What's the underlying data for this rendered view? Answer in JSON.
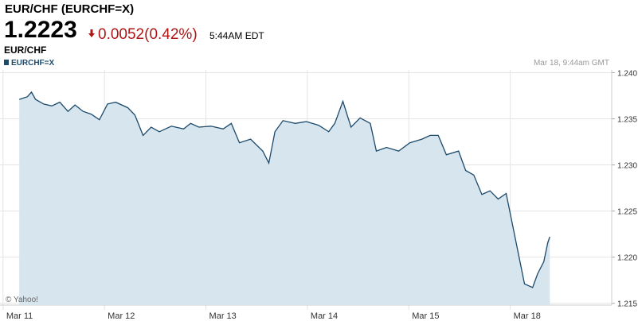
{
  "header": {
    "title": "EUR/CHF (EURCHF=X)",
    "price": "1.2223",
    "change": "0.0052(0.42%)",
    "time": "5:44AM EDT"
  },
  "chart_data": {
    "type": "area",
    "title": "EUR/CHF",
    "timestamp": "Mar 18, 9:44am GMT",
    "credit": "© Yahoo!",
    "x": [
      0.16,
      0.24,
      0.28,
      0.32,
      0.4,
      0.48,
      0.56,
      0.64,
      0.71,
      0.79,
      0.87,
      0.95,
      1.03,
      1.11,
      1.23,
      1.3,
      1.38,
      1.46,
      1.54,
      1.66,
      1.78,
      1.85,
      1.93,
      2.05,
      2.17,
      2.25,
      2.33,
      2.44,
      2.56,
      2.62,
      2.68,
      2.76,
      2.88,
      2.99,
      3.11,
      3.21,
      3.27,
      3.35,
      3.43,
      3.52,
      3.62,
      3.68,
      3.78,
      3.9,
      4.01,
      4.13,
      4.21,
      4.29,
      4.37,
      4.49,
      4.56,
      4.64,
      4.72,
      4.8,
      4.88,
      4.96,
      5.14,
      5.22,
      5.27,
      5.33,
      5.37,
      5.39
    ],
    "series": [
      {
        "name": "EURCHF=X",
        "color": "#1c4a6b",
        "fill": "#d7e5ef",
        "values": [
          1.2371,
          1.2374,
          1.2379,
          1.2371,
          1.2366,
          1.2364,
          1.2368,
          1.2358,
          1.2365,
          1.2358,
          1.2355,
          1.2349,
          1.2366,
          1.2368,
          1.2362,
          1.2354,
          1.2332,
          1.2341,
          1.2336,
          1.2342,
          1.2339,
          1.2345,
          1.2341,
          1.2342,
          1.2339,
          1.2345,
          1.2324,
          1.2328,
          1.2315,
          1.2302,
          1.2336,
          1.2348,
          1.2345,
          1.2347,
          1.2343,
          1.2336,
          1.2345,
          1.2369,
          1.2341,
          1.2351,
          1.2345,
          1.2315,
          1.2319,
          1.2315,
          1.2324,
          1.2328,
          1.2332,
          1.2332,
          1.2311,
          1.2315,
          1.2294,
          1.2289,
          1.2268,
          1.2272,
          1.2263,
          1.2269,
          1.2171,
          1.2167,
          1.2182,
          1.2195,
          1.2216,
          1.2222
        ]
      }
    ],
    "xlim": [
      -0.03,
      6.0
    ],
    "xticks": [
      {
        "value": 0,
        "label": "Mar 11"
      },
      {
        "value": 1,
        "label": "Mar 12"
      },
      {
        "value": 2,
        "label": "Mar 13"
      },
      {
        "value": 3,
        "label": "Mar 14"
      },
      {
        "value": 4,
        "label": "Mar 15"
      },
      {
        "value": 5,
        "label": "Mar 18"
      }
    ],
    "ylim": [
      1.2148,
      1.2403
    ],
    "yticks": [
      {
        "value": 1.24,
        "label": "1.240"
      },
      1.235,
      {
        "value": 1.23,
        "label": "1.230"
      },
      1.225,
      {
        "value": 1.22,
        "label": "1.220"
      },
      1.215
    ],
    "grid": true
  }
}
